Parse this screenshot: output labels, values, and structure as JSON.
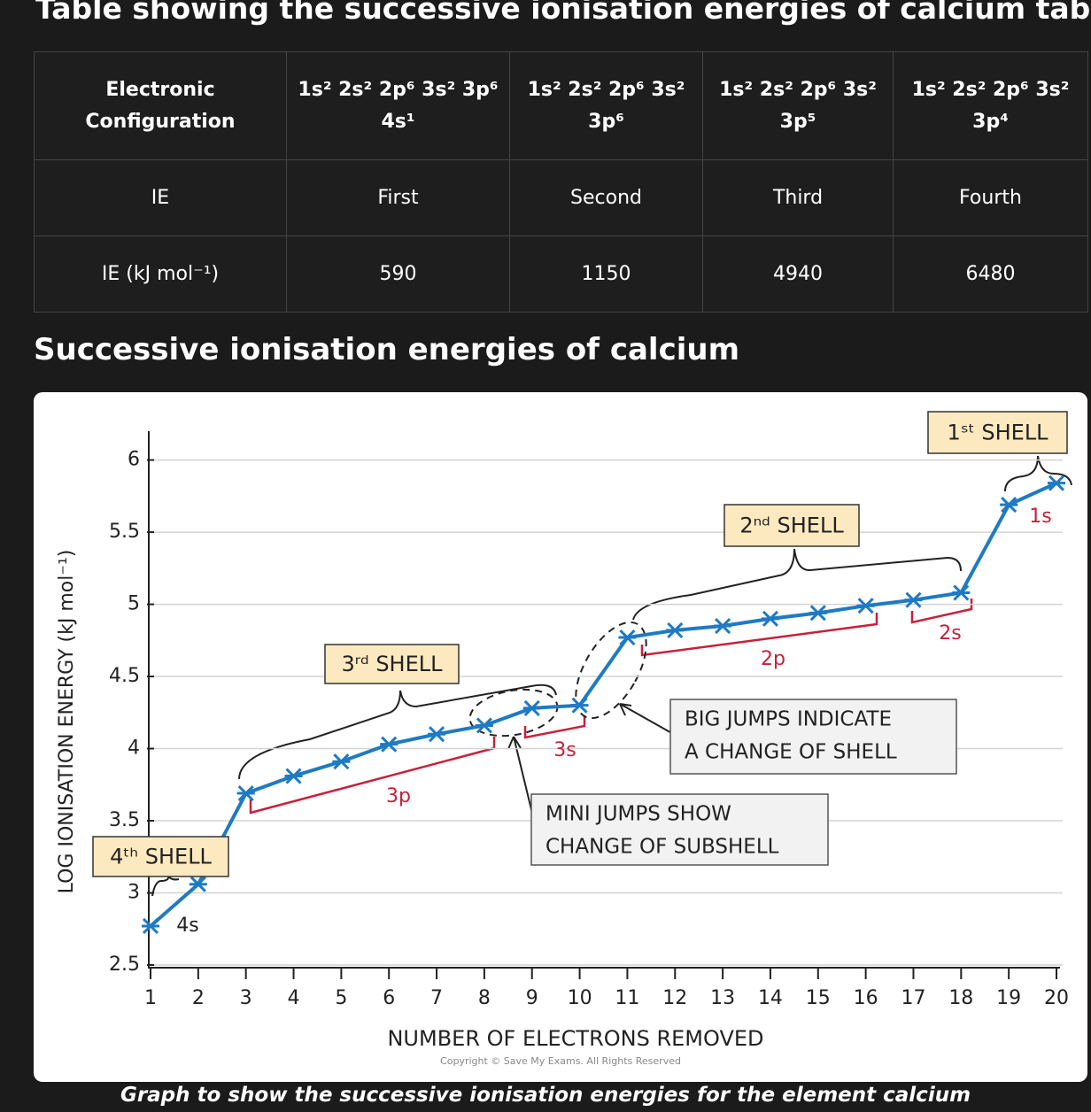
{
  "header": {
    "title": "Table showing the successive ionisation energies of calcium table"
  },
  "table": {
    "rows": [
      [
        "Electronic\nConfiguration",
        "1s² 2s² 2p⁶ 3s² 3p⁶\n4s¹",
        "1s² 2s² 2p⁶ 3s²\n3p⁶",
        "1s² 2s² 2p⁶ 3s²\n3p⁵",
        "1s² 2s² 2p⁶ 3s²\n3p⁴"
      ],
      [
        "IE",
        "First",
        "Second",
        "Third",
        "Fourth"
      ],
      [
        "IE (kJ mol⁻¹)",
        590,
        1150,
        4940,
        6480
      ]
    ]
  },
  "section_title": "Successive ionisation energies of calcium",
  "chart_data": {
    "type": "line",
    "x_label": "NUMBER OF ELECTRONS REMOVED",
    "y_label": "LOG IONISATION ENERGY (kJ mol⁻¹)",
    "x": [
      1,
      2,
      3,
      4,
      5,
      6,
      7,
      8,
      9,
      10,
      11,
      12,
      13,
      14,
      15,
      16,
      17,
      18,
      19,
      20
    ],
    "values": [
      2.77,
      3.06,
      3.69,
      3.81,
      3.91,
      4.03,
      4.1,
      4.16,
      4.28,
      4.3,
      4.77,
      4.82,
      4.85,
      4.9,
      4.94,
      4.99,
      5.03,
      5.08,
      5.69,
      5.84
    ],
    "color": "#1f7ac4",
    "marker": "x",
    "xlim": [
      1,
      20
    ],
    "xticks": [
      1,
      2,
      3,
      4,
      5,
      6,
      7,
      8,
      9,
      10,
      11,
      12,
      13,
      14,
      15,
      16,
      17,
      18,
      19,
      20
    ],
    "ylim": [
      2.5,
      6.2
    ],
    "yticks": [
      2.5,
      3,
      3.5,
      4,
      4.5,
      5,
      5.5,
      6
    ],
    "grid": true,
    "annotations": {
      "shell_labels": [
        "4ᵗʰ SHELL",
        "3ʳᵈ SHELL",
        "2ⁿᵈ SHELL",
        "1ˢᵗ SHELL"
      ],
      "subshell_labels": [
        "4s",
        "3p",
        "3s",
        "2p",
        "2s",
        "1s"
      ],
      "notes": [
        [
          "BIG  JUMPS  INDICATE",
          "A  CHANGE  OF  SHELL"
        ],
        [
          "MINI  JUMPS  SHOW",
          "CHANGE  OF  SUBSHELL"
        ]
      ]
    },
    "copyright": "Copyright © Save My Exams. All Rights Reserved"
  },
  "caption": "Graph to show the successive ionisation energies for the element calcium"
}
